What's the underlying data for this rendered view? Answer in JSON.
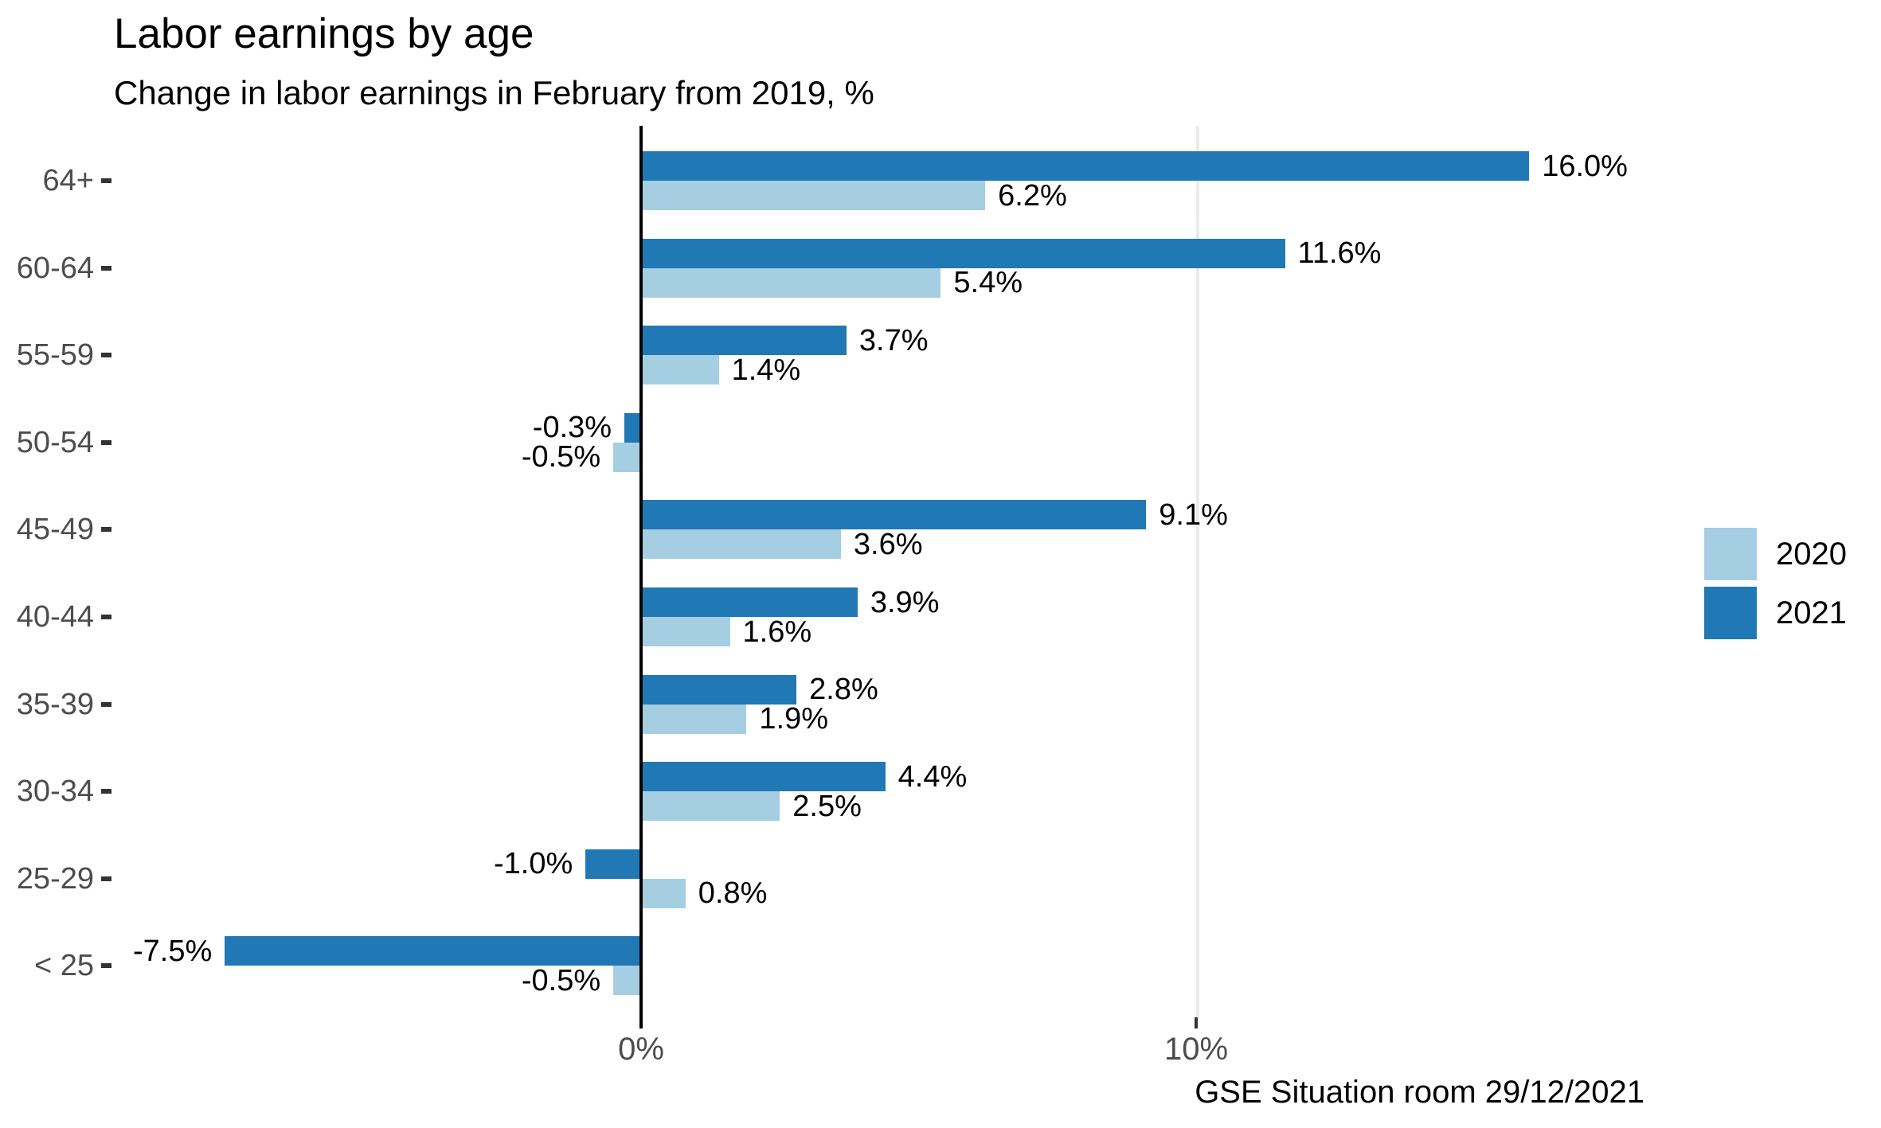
{
  "colors": {
    "bar_2021": "#2078B4",
    "bar_2020": "#A6CEE3",
    "axis_text": "#4D4D4D",
    "tick_mark": "#333333",
    "gridline": "#EBEBEB",
    "zero_line": "#000000",
    "background": "#FFFFFF",
    "text": "#000000"
  },
  "chart_data": {
    "type": "bar",
    "orientation": "horizontal",
    "title": "Labor earnings by age",
    "subtitle": "Change in labor earnings in February from 2019, %",
    "caption": "GSE Situation room 29/12/2021",
    "categories": [
      "64+",
      "60-64",
      "55-59",
      "50-54",
      "45-49",
      "40-44",
      "35-39",
      "30-34",
      "25-29",
      "< 25"
    ],
    "series": [
      {
        "name": "2021",
        "position": "top",
        "color": "#2078B4",
        "values": [
          16.0,
          11.6,
          3.7,
          -0.3,
          9.1,
          3.9,
          2.8,
          4.4,
          -1.0,
          -7.5
        ],
        "labels": [
          "16.0%",
          "11.6%",
          "3.7%",
          "-0.3%",
          "9.1%",
          "3.9%",
          "2.8%",
          "4.4%",
          "-1.0%",
          "-7.5%"
        ]
      },
      {
        "name": "2020",
        "position": "bottom",
        "color": "#A6CEE3",
        "values": [
          6.2,
          5.4,
          1.4,
          -0.5,
          3.6,
          1.6,
          1.9,
          2.5,
          0.8,
          -0.5
        ],
        "labels": [
          "6.2%",
          "5.4%",
          "1.4%",
          "-0.5%",
          "3.6%",
          "1.6%",
          "1.9%",
          "2.5%",
          "0.8%",
          "-0.5%"
        ]
      }
    ],
    "x_axis": {
      "ticks": [
        {
          "label": "0%",
          "value": 0
        },
        {
          "label": "10%",
          "value": 10
        }
      ],
      "gridline_values": [
        10
      ]
    },
    "xlim": [
      -9.4,
      18.3
    ],
    "grid": "single major vertical gridline at 10%, zero axis drawn as solid black line",
    "legend": {
      "position": "right",
      "items": [
        {
          "label": "2020",
          "color": "#A6CEE3"
        },
        {
          "label": "2021",
          "color": "#2078B4"
        }
      ]
    },
    "value_labels": true
  }
}
